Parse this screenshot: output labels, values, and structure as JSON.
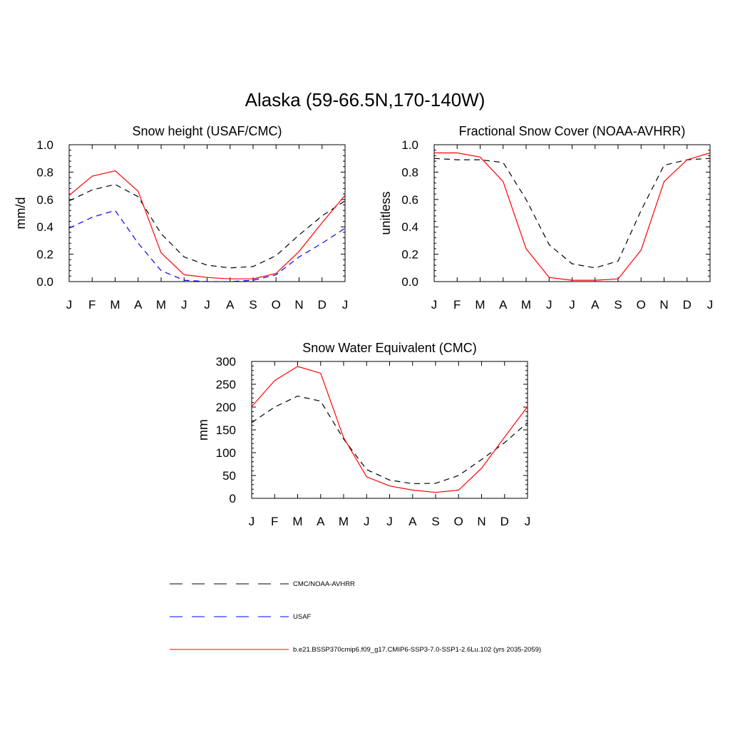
{
  "figure": {
    "title": "Alaska (59-66.5N,170-140W)"
  },
  "colors": {
    "obs": "#000000",
    "usaf": "#0000ff",
    "model": "#ff0000"
  },
  "chart_data": [
    {
      "type": "line",
      "title": "Snow height (USAF/CMC)",
      "ylabel": "mm/d",
      "xlabel": "",
      "categories": [
        "J",
        "F",
        "M",
        "A",
        "M",
        "J",
        "J",
        "A",
        "S",
        "O",
        "N",
        "D",
        "J"
      ],
      "ylim": [
        0,
        1.0
      ],
      "yticks": [
        0.0,
        0.2,
        0.4,
        0.6,
        0.8,
        1.0
      ],
      "ytick_labels": [
        "0.0",
        "0.2",
        "0.4",
        "0.6",
        "0.8",
        "1.0"
      ],
      "series": [
        {
          "name": "CMC/NOAA-AVHRR",
          "style": "dashed",
          "color": "#000000",
          "values": [
            0.59,
            0.67,
            0.71,
            0.62,
            0.35,
            0.18,
            0.12,
            0.1,
            0.11,
            0.19,
            0.34,
            0.48,
            0.59
          ]
        },
        {
          "name": "USAF",
          "style": "dashed",
          "color": "#0000ff",
          "values": [
            0.39,
            0.47,
            0.52,
            0.28,
            0.08,
            0.01,
            0.0,
            0.0,
            0.01,
            0.05,
            0.18,
            0.28,
            0.39
          ]
        },
        {
          "name": "b.e21.BSSP370cmip6.f09_g17.CMIP6-SSP3-7.0-SSP1-2.6Lu.102 (yrs 2035-2059)",
          "style": "solid",
          "color": "#ff0000",
          "values": [
            0.63,
            0.77,
            0.81,
            0.66,
            0.21,
            0.05,
            0.03,
            0.02,
            0.02,
            0.06,
            0.22,
            0.43,
            0.63
          ]
        }
      ]
    },
    {
      "type": "line",
      "title": "Fractional Snow Cover (NOAA-AVHRR)",
      "ylabel": "unitless",
      "xlabel": "",
      "categories": [
        "J",
        "F",
        "M",
        "A",
        "M",
        "J",
        "J",
        "A",
        "S",
        "O",
        "N",
        "D",
        "J"
      ],
      "ylim": [
        0,
        1.0
      ],
      "yticks": [
        0.0,
        0.2,
        0.4,
        0.6,
        0.8,
        1.0
      ],
      "ytick_labels": [
        "0.0",
        "0.2",
        "0.4",
        "0.6",
        "0.8",
        "1.0"
      ],
      "series": [
        {
          "name": "CMC/NOAA-AVHRR",
          "style": "dashed",
          "color": "#000000",
          "values": [
            0.9,
            0.89,
            0.89,
            0.87,
            0.6,
            0.27,
            0.13,
            0.1,
            0.15,
            0.52,
            0.85,
            0.89,
            0.9
          ]
        },
        {
          "name": "b.e21.BSSP370cmip6.f09_g17.CMIP6-SSP3-7.0-SSP1-2.6Lu.102 (yrs 2035-2059)",
          "style": "solid",
          "color": "#ff0000",
          "values": [
            0.94,
            0.94,
            0.91,
            0.73,
            0.24,
            0.03,
            0.01,
            0.01,
            0.02,
            0.23,
            0.73,
            0.89,
            0.94
          ]
        }
      ]
    },
    {
      "type": "line",
      "title": "Snow Water Equivalent (CMC)",
      "ylabel": "mm",
      "xlabel": "",
      "categories": [
        "J",
        "F",
        "M",
        "A",
        "M",
        "J",
        "J",
        "A",
        "S",
        "O",
        "N",
        "D",
        "J"
      ],
      "ylim": [
        0,
        300
      ],
      "yticks": [
        0,
        50,
        100,
        150,
        200,
        250,
        300
      ],
      "ytick_labels": [
        "0",
        "50",
        "100",
        "150",
        "200",
        "250",
        "300"
      ],
      "series": [
        {
          "name": "CMC/NOAA-AVHRR",
          "style": "dashed",
          "color": "#000000",
          "values": [
            166,
            200,
            224,
            213,
            130,
            63,
            40,
            32,
            33,
            50,
            85,
            122,
            166
          ]
        },
        {
          "name": "b.e21.BSSP370cmip6.f09_g17.CMIP6-SSP3-7.0-SSP1-2.6Lu.102 (yrs 2035-2059)",
          "style": "solid",
          "color": "#ff0000",
          "values": [
            201,
            258,
            289,
            274,
            133,
            47,
            27,
            18,
            13,
            18,
            66,
            134,
            201
          ]
        }
      ]
    }
  ],
  "legend": {
    "items": [
      {
        "label": "CMC/NOAA-AVHRR",
        "style": "dashed",
        "color": "#000000"
      },
      {
        "label": "USAF",
        "style": "dashed",
        "color": "#0000ff"
      },
      {
        "label": "b.e21.BSSP370cmip6.f09_g17.CMIP6-SSP3-7.0-SSP1-2.6Lu.102 (yrs 2035-2059)",
        "style": "solid",
        "color": "#ff0000"
      }
    ]
  }
}
